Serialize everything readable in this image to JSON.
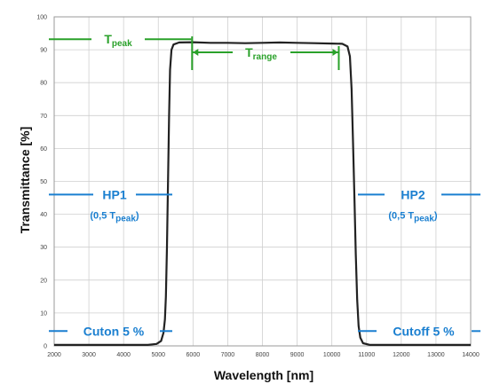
{
  "chart_data": {
    "type": "line",
    "title": "",
    "xlabel": "Wavelength [nm]",
    "ylabel": "Transmittance [%]",
    "xlim": [
      2000,
      14000
    ],
    "ylim": [
      0,
      100
    ],
    "x_ticks": [
      "2000",
      "3000",
      "4000",
      "5000",
      "6000",
      "7000",
      "8000",
      "9000",
      "10000",
      "11000",
      "12000",
      "13000",
      "14000"
    ],
    "y_ticks": [
      "0",
      "10",
      "20",
      "30",
      "40",
      "50",
      "60",
      "70",
      "80",
      "90",
      "100"
    ],
    "grid": true,
    "series": [
      {
        "color": "#222222",
        "points": [
          [
            2000,
            0.3
          ],
          [
            4700,
            0.3
          ],
          [
            4950,
            0.6
          ],
          [
            5080,
            1.5
          ],
          [
            5150,
            4
          ],
          [
            5190,
            8
          ],
          [
            5220,
            15
          ],
          [
            5250,
            30
          ],
          [
            5280,
            50
          ],
          [
            5310,
            70
          ],
          [
            5340,
            84
          ],
          [
            5380,
            90
          ],
          [
            5440,
            91.6
          ],
          [
            5600,
            92.2
          ],
          [
            6000,
            92.3
          ],
          [
            6500,
            92.1
          ],
          [
            7000,
            92.1
          ],
          [
            7500,
            92.0
          ],
          [
            8000,
            92.1
          ],
          [
            8500,
            92.2
          ],
          [
            9000,
            92.1
          ],
          [
            9500,
            92.0
          ],
          [
            10000,
            91.9
          ],
          [
            10300,
            91.8
          ],
          [
            10450,
            91.0
          ],
          [
            10520,
            88
          ],
          [
            10570,
            78
          ],
          [
            10610,
            62
          ],
          [
            10650,
            45
          ],
          [
            10690,
            28
          ],
          [
            10730,
            14
          ],
          [
            10770,
            6
          ],
          [
            10820,
            2.5
          ],
          [
            10900,
            0.8
          ],
          [
            11100,
            0.3
          ],
          [
            14000,
            0.3
          ]
        ]
      }
    ],
    "annotations": {
      "t_peak": {
        "main": "T",
        "sub": "peak",
        "y": 93.2,
        "x_from": 2000,
        "x_to": 6000,
        "tick_x": 6050,
        "color": "#2aa12a"
      },
      "t_range": {
        "main": "T",
        "sub": "range",
        "y": 86,
        "x_from": 6050,
        "x_to": 10200,
        "color": "#2aa12a"
      },
      "hp1": {
        "label": "HP1",
        "note_prefix": "(0,5 T",
        "note_sub": "peak",
        "note_suffix": ")",
        "y": 46,
        "x_from": 2000,
        "x_to": 5400,
        "color": "#1a7fd0"
      },
      "hp2": {
        "label": "HP2",
        "note_prefix": "(0,5 T",
        "note_sub": "peak",
        "note_suffix": ")",
        "y": 46,
        "x_from": 10700,
        "x_to": 14000,
        "color": "#1a7fd0"
      },
      "cuton": {
        "label": "Cuton 5 %",
        "y": 4.5,
        "x_from": 2000,
        "x_to": 5400,
        "color": "#1a7fd0"
      },
      "cutoff": {
        "label": "Cutoff 5 %",
        "y": 4.5,
        "x_from": 10700,
        "x_to": 14000,
        "color": "#1a7fd0"
      }
    }
  }
}
